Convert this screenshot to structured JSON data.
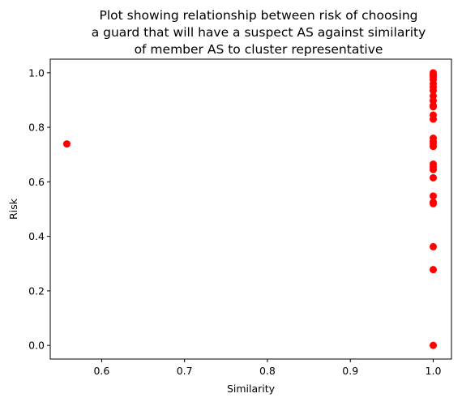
{
  "chart_data": {
    "type": "scatter",
    "title": [
      "Plot showing relationship between risk of choosing",
      "a guard that will have a suspect AS against similarity",
      "of member AS to cluster representative"
    ],
    "xlabel": "Similarity",
    "ylabel": "Risk",
    "xlim": [
      0.538,
      1.022
    ],
    "ylim": [
      -0.05,
      1.05
    ],
    "xticks": [
      "0.6",
      "0.7",
      "0.8",
      "0.9",
      "1.0"
    ],
    "xtick_values": [
      0.6,
      0.7,
      0.8,
      0.9,
      1.0
    ],
    "yticks": [
      "0.0",
      "0.2",
      "0.4",
      "0.6",
      "0.8",
      "1.0"
    ],
    "ytick_values": [
      0.0,
      0.2,
      0.4,
      0.6,
      0.8,
      1.0
    ],
    "marker_color": "#ff0000",
    "grid": false,
    "series": [
      {
        "points": [
          [
            0.558,
            0.739
          ],
          [
            1.0,
            1.0
          ],
          [
            1.0,
            0.992
          ],
          [
            1.0,
            0.985
          ],
          [
            1.0,
            0.975
          ],
          [
            1.0,
            0.96
          ],
          [
            1.0,
            0.948
          ],
          [
            1.0,
            0.935
          ],
          [
            1.0,
            0.915
          ],
          [
            1.0,
            0.898
          ],
          [
            1.0,
            0.88
          ],
          [
            1.0,
            0.875
          ],
          [
            1.0,
            0.845
          ],
          [
            1.0,
            0.83
          ],
          [
            1.0,
            0.76
          ],
          [
            1.0,
            0.748
          ],
          [
            1.0,
            0.74
          ],
          [
            1.0,
            0.73
          ],
          [
            1.0,
            0.665
          ],
          [
            1.0,
            0.655
          ],
          [
            1.0,
            0.645
          ],
          [
            1.0,
            0.615
          ],
          [
            1.0,
            0.548
          ],
          [
            1.0,
            0.525
          ],
          [
            1.0,
            0.52
          ],
          [
            1.0,
            0.362
          ],
          [
            1.0,
            0.278
          ],
          [
            1.0,
            0.0
          ]
        ]
      }
    ]
  }
}
